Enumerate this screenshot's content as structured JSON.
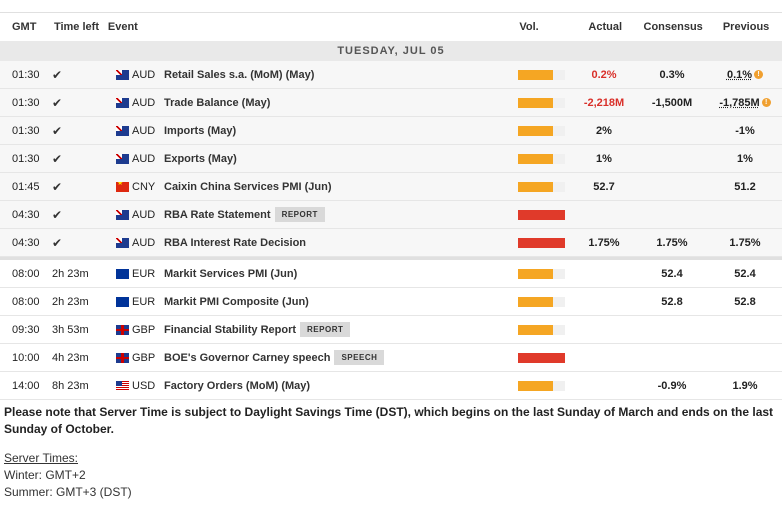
{
  "header": {
    "gmt": "GMT",
    "time_left": "Time left",
    "event": "Event",
    "vol": "Vol.",
    "actual": "Actual",
    "consensus": "Consensus",
    "previous": "Previous"
  },
  "day_label": "TUESDAY, JUL 05",
  "colors": {
    "medium": "#f5a623",
    "high": "#e03a2a",
    "negative": "#d9302a"
  },
  "events": [
    {
      "time": "01:30",
      "left": "",
      "done": true,
      "cur": "AUD",
      "flag": "aud",
      "name": "Retail Sales s.a. (MoM) (May)",
      "badge": "",
      "vol_level": "medium",
      "vol_fill": 0.75,
      "actual": "0.2%",
      "actual_neg": true,
      "consensus": "0.3%",
      "previous": "0.1%",
      "prev_revised": true
    },
    {
      "time": "01:30",
      "left": "",
      "done": true,
      "cur": "AUD",
      "flag": "aud",
      "name": "Trade Balance (May)",
      "badge": "",
      "vol_level": "medium",
      "vol_fill": 0.75,
      "actual": "-2,218M",
      "actual_neg": true,
      "consensus": "-1,500M",
      "previous": "-1,785M",
      "prev_revised": true
    },
    {
      "time": "01:30",
      "left": "",
      "done": true,
      "cur": "AUD",
      "flag": "aud",
      "name": "Imports (May)",
      "badge": "",
      "vol_level": "medium",
      "vol_fill": 0.75,
      "actual": "2%",
      "actual_neg": false,
      "consensus": "",
      "previous": "-1%",
      "prev_revised": false
    },
    {
      "time": "01:30",
      "left": "",
      "done": true,
      "cur": "AUD",
      "flag": "aud",
      "name": "Exports (May)",
      "badge": "",
      "vol_level": "medium",
      "vol_fill": 0.75,
      "actual": "1%",
      "actual_neg": false,
      "consensus": "",
      "previous": "1%",
      "prev_revised": false
    },
    {
      "time": "01:45",
      "left": "",
      "done": true,
      "cur": "CNY",
      "flag": "cny",
      "name": "Caixin China Services PMI (Jun)",
      "badge": "",
      "vol_level": "medium",
      "vol_fill": 0.75,
      "actual": "52.7",
      "actual_neg": false,
      "consensus": "",
      "previous": "51.2",
      "prev_revised": false
    },
    {
      "time": "04:30",
      "left": "",
      "done": true,
      "cur": "AUD",
      "flag": "aud",
      "name": "RBA Rate Statement",
      "badge": "REPORT",
      "vol_level": "high",
      "vol_fill": 1.0,
      "actual": "",
      "actual_neg": false,
      "consensus": "",
      "previous": "",
      "prev_revised": false
    },
    {
      "time": "04:30",
      "left": "",
      "done": true,
      "cur": "AUD",
      "flag": "aud",
      "name": "RBA Interest Rate Decision",
      "badge": "",
      "vol_level": "high",
      "vol_fill": 1.0,
      "actual": "1.75%",
      "actual_neg": false,
      "consensus": "1.75%",
      "previous": "1.75%",
      "prev_revised": false
    },
    {
      "time": "08:00",
      "left": "2h 23m",
      "done": false,
      "cur": "EUR",
      "flag": "eur",
      "name": "Markit Services PMI (Jun)",
      "badge": "",
      "vol_level": "medium",
      "vol_fill": 0.75,
      "actual": "",
      "actual_neg": false,
      "consensus": "52.4",
      "previous": "52.4",
      "prev_revised": false
    },
    {
      "time": "08:00",
      "left": "2h 23m",
      "done": false,
      "cur": "EUR",
      "flag": "eur",
      "name": "Markit PMI Composite (Jun)",
      "badge": "",
      "vol_level": "medium",
      "vol_fill": 0.75,
      "actual": "",
      "actual_neg": false,
      "consensus": "52.8",
      "previous": "52.8",
      "prev_revised": false
    },
    {
      "time": "09:30",
      "left": "3h 53m",
      "done": false,
      "cur": "GBP",
      "flag": "gbp",
      "name": "Financial Stability Report",
      "badge": "REPORT",
      "vol_level": "medium",
      "vol_fill": 0.75,
      "actual": "",
      "actual_neg": false,
      "consensus": "",
      "previous": "",
      "prev_revised": false
    },
    {
      "time": "10:00",
      "left": "4h 23m",
      "done": false,
      "cur": "GBP",
      "flag": "gbp",
      "name": "BOE's Governor Carney speech",
      "badge": "SPEECH",
      "vol_level": "high",
      "vol_fill": 1.0,
      "actual": "",
      "actual_neg": false,
      "consensus": "",
      "previous": "",
      "prev_revised": false
    },
    {
      "time": "14:00",
      "left": "8h 23m",
      "done": false,
      "cur": "USD",
      "flag": "usd",
      "name": "Factory Orders (MoM) (May)",
      "badge": "",
      "vol_level": "medium",
      "vol_fill": 0.75,
      "actual": "",
      "actual_neg": false,
      "consensus": "-0.9%",
      "previous": "1.9%",
      "prev_revised": false
    }
  ],
  "note": "Please note that Server Time is subject to Daylight Savings Time (DST), which begins on the last Sunday of March and ends on the last Sunday of October.",
  "server": {
    "title": "Server Times:",
    "winter": "Winter: GMT+2",
    "summer": "Summer: GMT+3 (DST)"
  }
}
